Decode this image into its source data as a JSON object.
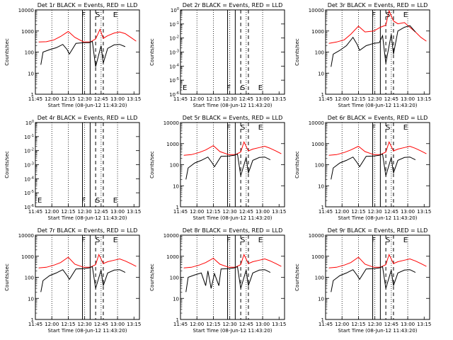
{
  "window": {
    "title": ""
  },
  "colors": {
    "events": "#000000",
    "lld": "#ff0000",
    "axis": "#000000"
  },
  "common": {
    "xtick_labels": [
      "11:45",
      "12:00",
      "12:15",
      "12:30",
      "12:45",
      "13:00",
      "13:15"
    ],
    "xlabel": "Start Time (08-Jun-12 11:43:20)",
    "ylabel": "Counts/sec",
    "flag_labels": [
      "F",
      "S",
      "E"
    ]
  },
  "chart_data": [
    {
      "type": "line",
      "title": "Det 1r BLACK = Events, RED = LLD",
      "xlabel": "Start Time (08-Jun-12 11:43:20)",
      "ylabel": "Counts/sec",
      "xlim": [
        "11:45",
        "13:20"
      ],
      "yscale": "log",
      "ylim": [
        1,
        10000
      ],
      "ytick_labels": [
        "1",
        "10",
        "100",
        "1000",
        "10000"
      ],
      "vlines_solid": [
        "12:28",
        "12:35"
      ],
      "vlines_dashed": [
        "12:40",
        "12:47"
      ],
      "flags": [
        {
          "label": "F",
          "x": "12:29"
        },
        {
          "label": "S",
          "x": "12:42"
        },
        {
          "label": "E",
          "x": "12:58"
        }
      ],
      "series": [
        {
          "color": "#ff0000",
          "x": [
            "11:48",
            "11:55",
            "12:02",
            "12:08",
            "12:15",
            "12:21",
            "12:29",
            "12:35",
            "12:40",
            "12:44",
            "12:47",
            "12:51",
            "12:57",
            "13:02",
            "13:07",
            "13:12",
            "13:17"
          ],
          "y": [
            300,
            310,
            380,
            550,
            950,
            500,
            300,
            300,
            420,
            1200,
            450,
            600,
            800,
            900,
            750,
            500,
            330
          ]
        },
        {
          "color": "#000000",
          "x": [
            "11:50",
            "11:52",
            "11:58",
            "12:04",
            "12:10",
            "12:14",
            "12:16",
            "12:22",
            "12:29",
            "12:34",
            "12:37",
            "12:40",
            "12:45",
            "12:47",
            "12:51",
            "12:57",
            "13:02",
            "13:07"
          ],
          "y": [
            25,
            100,
            130,
            160,
            230,
            130,
            80,
            260,
            280,
            280,
            320,
            20,
            200,
            30,
            150,
            220,
            230,
            180
          ]
        }
      ]
    },
    {
      "type": "line",
      "title": "Det 2r BLACK = Events, RED = LLD",
      "xlabel": "Start Time (08-Jun-12 11:43:20)",
      "ylabel": "Counts/sec",
      "xlim": [
        "11:45",
        "13:20"
      ],
      "yscale": "log",
      "ylim": [
        1,
        1e-06
      ],
      "ytick_labels": [
        "10^-6",
        "10^-5",
        "10^-4",
        "10^-3",
        "10^-2",
        "10^-1",
        "10^0"
      ],
      "vlines_solid": [
        "12:28",
        "12:35"
      ],
      "vlines_dashed": [
        "12:40",
        "12:47"
      ],
      "flags": [
        {
          "label": "F",
          "x": "12:29"
        },
        {
          "label": "S",
          "x": "12:42"
        },
        {
          "label": "E",
          "x": "12:58"
        }
      ],
      "series": []
    },
    {
      "type": "line",
      "title": "Det 3r BLACK = Events, RED = LLD",
      "xlabel": "Start Time (08-Jun-12 11:43:20)",
      "ylabel": "Counts/sec",
      "xlim": [
        "11:45",
        "13:20"
      ],
      "yscale": "log",
      "ylim": [
        1,
        10000
      ],
      "ytick_labels": [
        "1",
        "10",
        "100",
        "1000",
        "10000"
      ],
      "vlines_solid": [
        "12:28",
        "12:35"
      ],
      "vlines_dashed": [
        "12:40",
        "12:47"
      ],
      "flags": [
        {
          "label": "F",
          "x": "12:29"
        },
        {
          "label": "S",
          "x": "12:42"
        },
        {
          "label": "E",
          "x": "12:58"
        }
      ],
      "series": [
        {
          "color": "#ff0000",
          "x": [
            "11:48",
            "11:55",
            "12:02",
            "12:08",
            "12:15",
            "12:21",
            "12:29",
            "12:35",
            "12:40",
            "12:43",
            "12:47",
            "12:51",
            "12:57",
            "13:02",
            "13:07",
            "13:12",
            "13:17"
          ],
          "y": [
            260,
            300,
            380,
            700,
            1700,
            900,
            1000,
            1500,
            1900,
            9000,
            3000,
            2200,
            2500,
            1500,
            900,
            500,
            330
          ]
        },
        {
          "color": "#000000",
          "x": [
            "11:50",
            "11:52",
            "11:58",
            "12:04",
            "12:10",
            "12:14",
            "12:16",
            "12:22",
            "12:29",
            "12:34",
            "12:37",
            "12:40",
            "12:45",
            "12:47",
            "12:51",
            "12:57",
            "13:02",
            "13:07"
          ],
          "y": [
            20,
            80,
            120,
            200,
            500,
            220,
            120,
            200,
            260,
            280,
            600,
            30,
            700,
            80,
            1000,
            1500,
            1800,
            900
          ]
        }
      ]
    },
    {
      "type": "line",
      "title": "Det 4r BLACK = Events, RED = LLD",
      "xlabel": "Start Time (08-Jun-12 11:43:20)",
      "ylabel": "Counts/sec",
      "xlim": [
        "11:45",
        "13:20"
      ],
      "yscale": "log",
      "ylim": [
        1,
        1e-06
      ],
      "ytick_labels": [
        "10^-6",
        "10^-5",
        "10^-4",
        "10^-3",
        "10^-2",
        "10^-1",
        "10^0"
      ],
      "vlines_solid": [
        "12:28",
        "12:35"
      ],
      "vlines_dashed": [
        "12:40",
        "12:47"
      ],
      "flags": [
        {
          "label": "F",
          "x": "12:29"
        },
        {
          "label": "S",
          "x": "12:42"
        },
        {
          "label": "E",
          "x": "12:58"
        }
      ],
      "series": []
    },
    {
      "type": "line",
      "title": "Det 5r BLACK = Events, RED = LLD",
      "xlabel": "Start Time (08-Jun-12 11:43:20)",
      "ylabel": "Counts/sec",
      "xlim": [
        "11:45",
        "13:20"
      ],
      "yscale": "log",
      "ylim": [
        1,
        10000
      ],
      "ytick_labels": [
        "1",
        "10",
        "100",
        "1000",
        "10000"
      ],
      "vlines_solid": [
        "12:28",
        "12:35"
      ],
      "vlines_dashed": [
        "12:40",
        "12:47"
      ],
      "flags": [
        {
          "label": "F",
          "x": "12:29"
        },
        {
          "label": "S",
          "x": "12:42"
        },
        {
          "label": "E",
          "x": "12:58"
        }
      ],
      "series": [
        {
          "color": "#ff0000",
          "x": [
            "11:48",
            "11:55",
            "12:02",
            "12:08",
            "12:15",
            "12:21",
            "12:29",
            "12:35",
            "12:40",
            "12:43",
            "12:47",
            "12:51",
            "12:57",
            "13:02",
            "13:07",
            "13:12",
            "13:17"
          ],
          "y": [
            280,
            300,
            380,
            500,
            800,
            420,
            300,
            300,
            400,
            1200,
            450,
            550,
            650,
            750,
            600,
            450,
            330
          ]
        },
        {
          "color": "#000000",
          "x": [
            "11:50",
            "11:52",
            "11:58",
            "12:04",
            "12:10",
            "12:14",
            "12:16",
            "12:22",
            "12:29",
            "12:34",
            "12:37",
            "12:40",
            "12:45",
            "12:47",
            "12:51",
            "12:57",
            "13:02",
            "13:07"
          ],
          "y": [
            20,
            70,
            120,
            160,
            230,
            120,
            80,
            250,
            260,
            280,
            320,
            30,
            220,
            40,
            160,
            220,
            230,
            170
          ]
        }
      ]
    },
    {
      "type": "line",
      "title": "Det 6r BLACK = Events, RED = LLD",
      "xlabel": "Start Time (08-Jun-12 11:43:20)",
      "ylabel": "Counts/sec",
      "xlim": [
        "11:45",
        "13:20"
      ],
      "yscale": "log",
      "ylim": [
        1,
        10000
      ],
      "ytick_labels": [
        "1",
        "10",
        "100",
        "1000",
        "10000"
      ],
      "vlines_solid": [
        "12:28",
        "12:35"
      ],
      "vlines_dashed": [
        "12:40",
        "12:47"
      ],
      "flags": [
        {
          "label": "F",
          "x": "12:29"
        },
        {
          "label": "S",
          "x": "12:42"
        },
        {
          "label": "E",
          "x": "12:58"
        }
      ],
      "series": [
        {
          "color": "#ff0000",
          "x": [
            "11:48",
            "11:55",
            "12:02",
            "12:08",
            "12:15",
            "12:21",
            "12:29",
            "12:35",
            "12:40",
            "12:43",
            "12:47",
            "12:51",
            "12:57",
            "13:02",
            "13:07",
            "13:12",
            "13:17"
          ],
          "y": [
            280,
            300,
            380,
            500,
            750,
            420,
            300,
            300,
            400,
            1200,
            450,
            550,
            650,
            750,
            600,
            450,
            330
          ]
        },
        {
          "color": "#000000",
          "x": [
            "11:50",
            "11:52",
            "11:58",
            "12:04",
            "12:10",
            "12:14",
            "12:16",
            "12:22",
            "12:29",
            "12:34",
            "12:37",
            "12:40",
            "12:45",
            "12:47",
            "12:51",
            "12:57",
            "13:02",
            "13:07"
          ],
          "y": [
            20,
            70,
            120,
            160,
            230,
            120,
            80,
            250,
            260,
            280,
            320,
            30,
            220,
            40,
            160,
            220,
            230,
            170
          ]
        }
      ]
    },
    {
      "type": "line",
      "title": "Det 7r BLACK = Events, RED = LLD",
      "xlabel": "Start Time (08-Jun-12 11:43:20)",
      "ylabel": "Counts/sec",
      "xlim": [
        "11:45",
        "13:20"
      ],
      "yscale": "log",
      "ylim": [
        1,
        10000
      ],
      "ytick_labels": [
        "1",
        "10",
        "100",
        "1000",
        "10000"
      ],
      "vlines_solid": [
        "12:28",
        "12:35"
      ],
      "vlines_dashed": [
        "12:40",
        "12:47"
      ],
      "flags": [
        {
          "label": "F",
          "x": "12:29"
        },
        {
          "label": "S",
          "x": "12:42"
        },
        {
          "label": "E",
          "x": "12:58"
        }
      ],
      "series": [
        {
          "color": "#ff0000",
          "x": [
            "11:48",
            "11:55",
            "12:02",
            "12:08",
            "12:15",
            "12:21",
            "12:29",
            "12:35",
            "12:40",
            "12:43",
            "12:47",
            "12:51",
            "12:57",
            "13:02",
            "13:07",
            "13:12",
            "13:17"
          ],
          "y": [
            280,
            300,
            380,
            500,
            900,
            420,
            300,
            300,
            400,
            1200,
            450,
            550,
            650,
            750,
            600,
            450,
            330
          ]
        },
        {
          "color": "#000000",
          "x": [
            "11:50",
            "11:52",
            "11:58",
            "12:04",
            "12:10",
            "12:14",
            "12:16",
            "12:22",
            "12:29",
            "12:34",
            "12:37",
            "12:40",
            "12:45",
            "12:47",
            "12:51",
            "12:57",
            "13:02",
            "13:07"
          ],
          "y": [
            20,
            70,
            120,
            160,
            230,
            120,
            80,
            250,
            260,
            280,
            320,
            30,
            220,
            40,
            160,
            220,
            230,
            170
          ]
        }
      ]
    },
    {
      "type": "line",
      "title": "Det 8r BLACK = Events, RED = LLD",
      "xlabel": "Start Time (08-Jun-12 11:43:20)",
      "ylabel": "Counts/sec",
      "xlim": [
        "11:45",
        "13:20"
      ],
      "yscale": "log",
      "ylim": [
        1,
        10000
      ],
      "ytick_labels": [
        "1",
        "10",
        "100",
        "1000",
        "10000"
      ],
      "vlines_solid": [
        "12:28",
        "12:35"
      ],
      "vlines_dashed": [
        "12:40",
        "12:47"
      ],
      "flags": [
        {
          "label": "F",
          "x": "12:29"
        },
        {
          "label": "S",
          "x": "12:42"
        },
        {
          "label": "E",
          "x": "12:58"
        }
      ],
      "series": [
        {
          "color": "#ff0000",
          "x": [
            "11:48",
            "11:55",
            "12:02",
            "12:08",
            "12:15",
            "12:21",
            "12:29",
            "12:35",
            "12:40",
            "12:43",
            "12:47",
            "12:51",
            "12:57",
            "13:02",
            "13:07",
            "13:12",
            "13:17"
          ],
          "y": [
            280,
            300,
            380,
            500,
            800,
            420,
            300,
            300,
            400,
            1200,
            450,
            550,
            650,
            750,
            600,
            450,
            330
          ]
        },
        {
          "color": "#000000",
          "x": [
            "11:50",
            "11:52",
            "11:58",
            "12:04",
            "12:08",
            "12:10",
            "12:13",
            "12:16",
            "12:20",
            "12:22",
            "12:29",
            "12:34",
            "12:37",
            "12:40",
            "12:45",
            "12:47",
            "12:51",
            "12:57",
            "13:02",
            "13:07"
          ],
          "y": [
            20,
            100,
            130,
            160,
            40,
            200,
            30,
            150,
            40,
            250,
            260,
            280,
            320,
            30,
            220,
            40,
            160,
            220,
            230,
            170
          ]
        }
      ]
    },
    {
      "type": "line",
      "title": "Det 9r BLACK = Events, RED = LLD",
      "xlabel": "Start Time (08-Jun-12 11:43:20)",
      "ylabel": "Counts/sec",
      "xlim": [
        "11:45",
        "13:20"
      ],
      "yscale": "log",
      "ylim": [
        1,
        10000
      ],
      "ytick_labels": [
        "1",
        "10",
        "100",
        "1000",
        "10000"
      ],
      "vlines_solid": [
        "12:28",
        "12:35"
      ],
      "vlines_dashed": [
        "12:40",
        "12:47"
      ],
      "flags": [
        {
          "label": "F",
          "x": "12:29"
        },
        {
          "label": "S",
          "x": "12:42"
        },
        {
          "label": "E",
          "x": "12:58"
        }
      ],
      "series": [
        {
          "color": "#ff0000",
          "x": [
            "11:48",
            "11:55",
            "12:02",
            "12:08",
            "12:15",
            "12:21",
            "12:29",
            "12:35",
            "12:40",
            "12:43",
            "12:47",
            "12:51",
            "12:57",
            "13:02",
            "13:07",
            "13:12",
            "13:17"
          ],
          "y": [
            280,
            300,
            380,
            500,
            900,
            420,
            300,
            300,
            400,
            1200,
            450,
            550,
            650,
            750,
            600,
            450,
            330
          ]
        },
        {
          "color": "#000000",
          "x": [
            "11:50",
            "11:52",
            "11:58",
            "12:04",
            "12:10",
            "12:14",
            "12:16",
            "12:22",
            "12:29",
            "12:34",
            "12:37",
            "12:40",
            "12:45",
            "12:47",
            "12:51",
            "12:57",
            "13:02",
            "13:07"
          ],
          "y": [
            20,
            70,
            120,
            160,
            230,
            120,
            80,
            250,
            260,
            280,
            320,
            30,
            220,
            40,
            160,
            220,
            230,
            170
          ]
        }
      ]
    }
  ]
}
